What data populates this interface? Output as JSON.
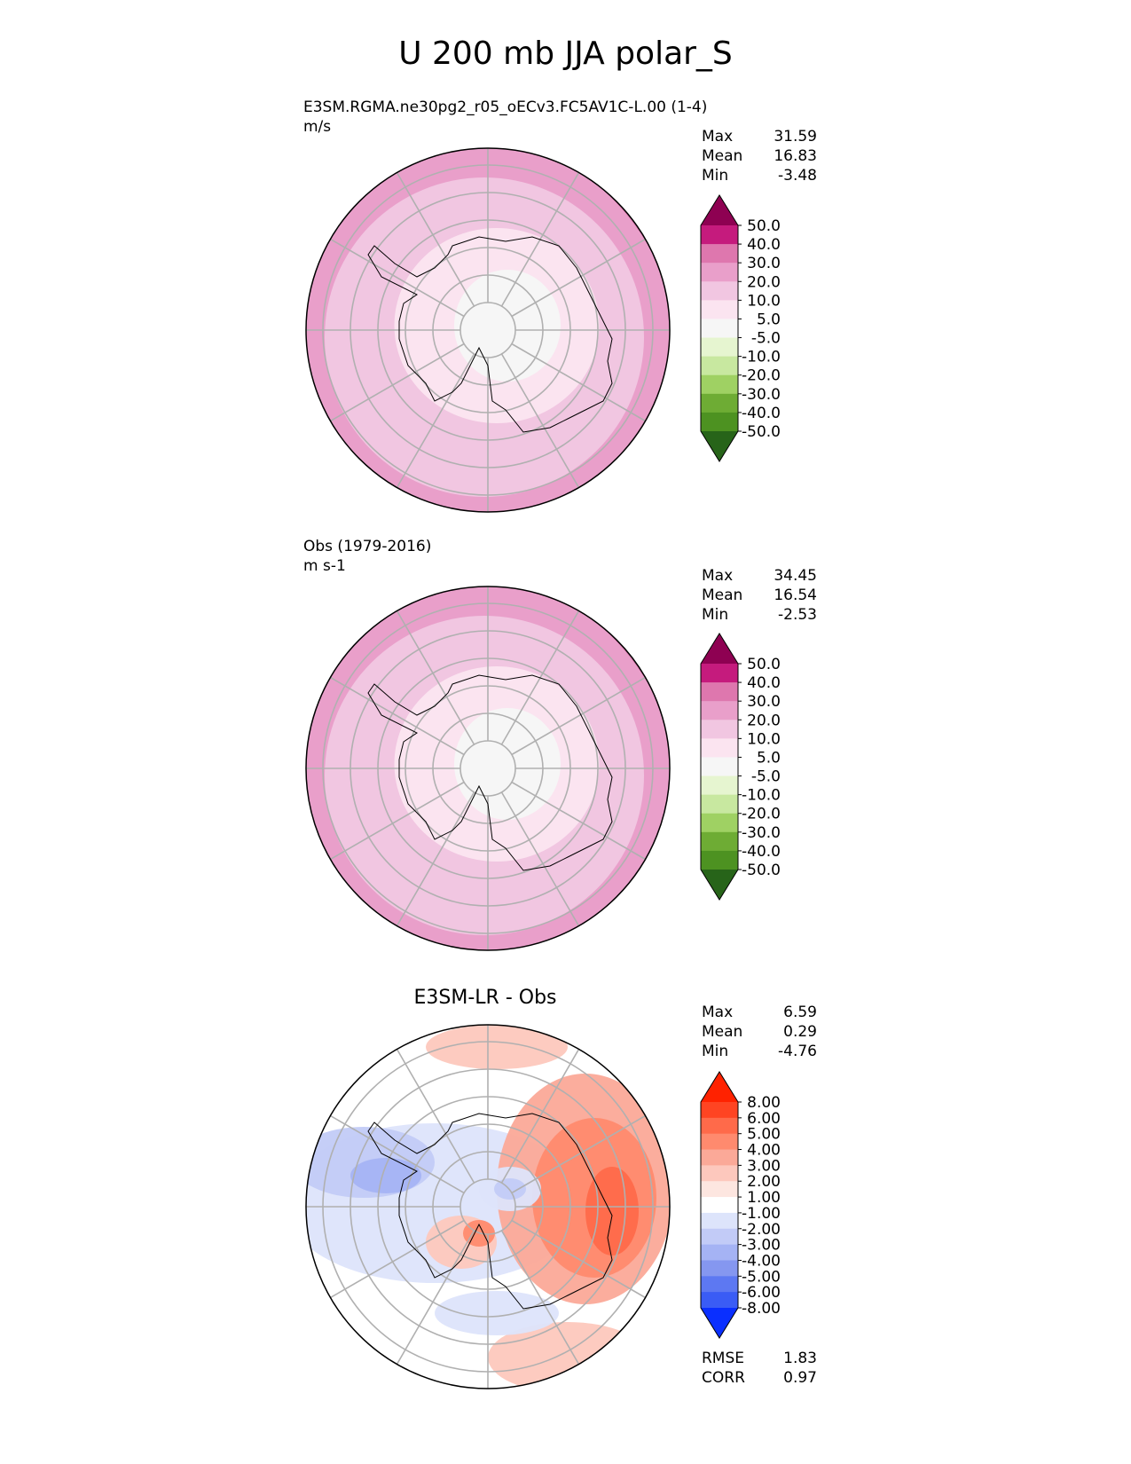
{
  "page": {
    "title": "U 200 mb JJA polar_S"
  },
  "panels": [
    {
      "id": "test",
      "title": "E3SM.RGMA.ne30pg2_r05_oECv3.FC5AV1C-L.00 (1-4)",
      "units": "m/s",
      "stats": [
        {
          "label": "Max",
          "value": "31.59"
        },
        {
          "label": "Mean",
          "value": "16.83"
        },
        {
          "label": "Min",
          "value": "-3.48"
        }
      ]
    },
    {
      "id": "reference",
      "title": "Obs (1979-2016)",
      "units": "m s-1",
      "stats": [
        {
          "label": "Max",
          "value": "34.45"
        },
        {
          "label": "Mean",
          "value": "16.54"
        },
        {
          "label": "Min",
          "value": "-2.53"
        }
      ]
    },
    {
      "id": "difference",
      "title": "E3SM-LR - Obs",
      "stats": [
        {
          "label": "Max",
          "value": "6.59"
        },
        {
          "label": "Mean",
          "value": "0.29"
        },
        {
          "label": "Min",
          "value": "-4.76"
        }
      ],
      "metrics": [
        {
          "label": "RMSE",
          "value": "1.83"
        },
        {
          "label": "CORR",
          "value": "0.97"
        }
      ]
    }
  ],
  "chart_data": [
    {
      "type": "polar-contour-map",
      "title": "E3SM.RGMA.ne30pg2_r05_oECv3.FC5AV1C-L.00 (1-4)",
      "projection": "south-polar-stereographic",
      "levels": [
        "50.0",
        "40.0",
        "30.0",
        "20.0",
        "10.0",
        "5.0",
        "-5.0",
        "-10.0",
        "-20.0",
        "-30.0",
        "-40.0",
        "-50.0"
      ],
      "colors": [
        "#8e0152",
        "#c51b7d",
        "#de77ae",
        "#e99fca",
        "#f1c6e1",
        "#fbe4f0",
        "#f6f6f6",
        "#e6f5d0",
        "#c8e8a0",
        "#9fd163",
        "#6eac34",
        "#4d9221",
        "#276419"
      ],
      "field_rings": [
        {
          "level_index": 3
        },
        {
          "level_index": 4
        },
        {
          "level_index": 5
        },
        {
          "level_index": 6
        }
      ]
    },
    {
      "type": "polar-contour-map",
      "title": "Obs (1979-2016)",
      "projection": "south-polar-stereographic",
      "levels": [
        "50.0",
        "40.0",
        "30.0",
        "20.0",
        "10.0",
        "5.0",
        "-5.0",
        "-10.0",
        "-20.0",
        "-30.0",
        "-40.0",
        "-50.0"
      ],
      "colors": [
        "#8e0152",
        "#c51b7d",
        "#de77ae",
        "#e99fca",
        "#f1c6e1",
        "#fbe4f0",
        "#f6f6f6",
        "#e6f5d0",
        "#c8e8a0",
        "#9fd163",
        "#6eac34",
        "#4d9221",
        "#276419"
      ],
      "field_rings": [
        {
          "level_index": 3
        },
        {
          "level_index": 4
        },
        {
          "level_index": 5
        },
        {
          "level_index": 6
        }
      ]
    },
    {
      "type": "polar-contour-map",
      "title": "E3SM-LR - Obs",
      "projection": "south-polar-stereographic",
      "levels": [
        "8.00",
        "6.00",
        "5.00",
        "4.00",
        "3.00",
        "2.00",
        "1.00",
        "-1.00",
        "-2.00",
        "-3.00",
        "-4.00",
        "-5.00",
        "-6.00",
        "-8.00"
      ],
      "colors": [
        "#ff2200",
        "#ff4422",
        "#ff6a4a",
        "#ff8a6e",
        "#fba998",
        "#fdc8bd",
        "#fde6e0",
        "#ffffff",
        "#dde4fb",
        "#c2cbf7",
        "#a5b3f4",
        "#8597f0",
        "#5d78f2",
        "#3a5cf5",
        "#0a2fff"
      ]
    }
  ]
}
